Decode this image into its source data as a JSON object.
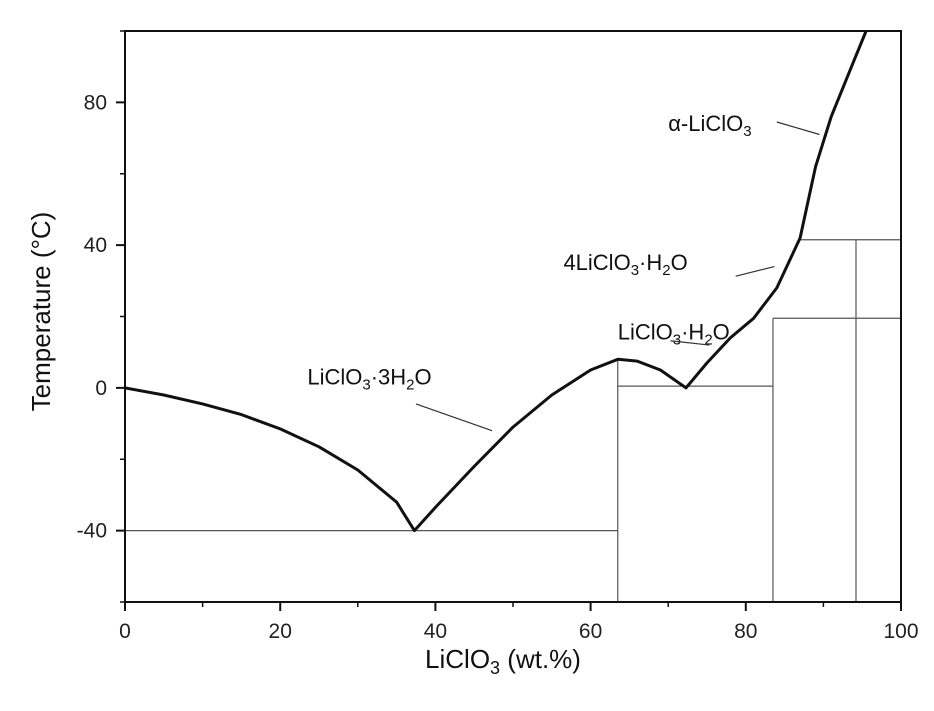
{
  "chart_data": {
    "type": "line",
    "xlabel": {
      "main": "LiClO",
      "sub": "3",
      "tail": " (wt.%)"
    },
    "ylabel": "Temperature (°C)",
    "xlim": [
      0,
      100
    ],
    "ylim": [
      -60,
      100
    ],
    "x_ticks": [
      0,
      20,
      40,
      60,
      80,
      100
    ],
    "y_ticks": [
      -40,
      0,
      40,
      80
    ],
    "x_tick_labels": [
      "0",
      "20",
      "40",
      "60",
      "80",
      "100"
    ],
    "y_tick_labels": [
      "-40",
      "0",
      "40",
      "80"
    ],
    "grid": false,
    "series": [
      {
        "points": [
          [
            0,
            0
          ],
          [
            5,
            -2
          ],
          [
            10,
            -4.5
          ],
          [
            15,
            -7.5
          ],
          [
            20,
            -11.5
          ],
          [
            25,
            -16.5
          ],
          [
            30,
            -23
          ],
          [
            35,
            -32
          ],
          [
            37.3,
            -40
          ],
          [
            40,
            -33.5
          ],
          [
            45,
            -22
          ],
          [
            50,
            -11
          ],
          [
            55,
            -2
          ],
          [
            60,
            5
          ],
          [
            63.5,
            8
          ],
          [
            66,
            7.5
          ],
          [
            69,
            5
          ],
          [
            72.3,
            0
          ],
          [
            75,
            7
          ],
          [
            78,
            14
          ],
          [
            81,
            19.5
          ],
          [
            84,
            28
          ],
          [
            87,
            42
          ],
          [
            89,
            62
          ],
          [
            91,
            76
          ],
          [
            94,
            92
          ],
          [
            95.5,
            100
          ]
        ]
      }
    ],
    "reference_lines": [
      {
        "x1": 0,
        "y1": -40,
        "x2": 63.5,
        "y2": -40
      },
      {
        "x1": 63.5,
        "y1": -60,
        "x2": 63.5,
        "y2": 8
      },
      {
        "x1": 63.5,
        "y1": 0.5,
        "x2": 83.5,
        "y2": 0.5
      },
      {
        "x1": 83.5,
        "y1": -60,
        "x2": 83.5,
        "y2": 19.5
      },
      {
        "x1": 83.5,
        "y1": 19.5,
        "x2": 100,
        "y2": 19.5
      },
      {
        "x1": 87,
        "y1": 41.5,
        "x2": 100,
        "y2": 41.5
      },
      {
        "x1": 94.2,
        "y1": -60,
        "x2": 94.2,
        "y2": 41.5
      }
    ],
    "annotations": [
      {
        "parts": [
          [
            "LiClO",
            ""
          ],
          [
            "3",
            "sub"
          ],
          [
            "·3H",
            ""
          ],
          [
            "2",
            "sub"
          ],
          [
            "O",
            ""
          ]
        ],
        "text_at": [
          23.5,
          1
        ],
        "leader": [
          [
            37.5,
            -4.5
          ],
          [
            47.3,
            -12
          ]
        ]
      },
      {
        "parts": [
          [
            "LiClO",
            ""
          ],
          [
            "3",
            "sub"
          ],
          [
            "·H",
            ""
          ],
          [
            "2",
            "sub"
          ],
          [
            "O",
            ""
          ]
        ],
        "text_at": [
          63.5,
          13.5
        ],
        "leader": [
          [
            70.3,
            13.2
          ],
          [
            75.3,
            12
          ]
        ]
      },
      {
        "parts": [
          [
            "4LiClO",
            ""
          ],
          [
            "3",
            "sub"
          ],
          [
            "·H",
            ""
          ],
          [
            "2",
            "sub"
          ],
          [
            "O",
            ""
          ]
        ],
        "text_at": [
          56.5,
          33
        ],
        "leader": [
          [
            83.7,
            34
          ],
          [
            78.7,
            31.3
          ]
        ]
      },
      {
        "parts": [
          [
            "α-LiClO",
            ""
          ],
          [
            "3",
            "sub"
          ]
        ],
        "text_at": [
          70,
          72
        ],
        "leader": [
          [
            84,
            74.5
          ],
          [
            89.5,
            71
          ]
        ]
      }
    ]
  }
}
